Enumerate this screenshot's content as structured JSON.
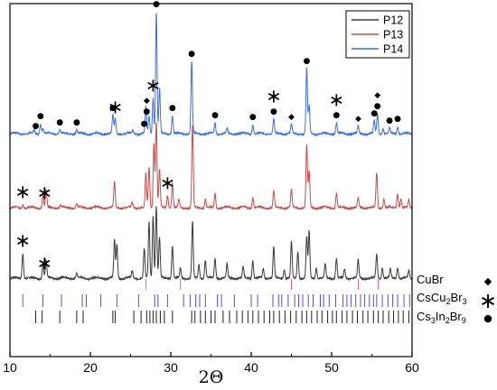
{
  "chart_data": {
    "type": "line",
    "title": "",
    "xlabel": "2Θ",
    "ylabel": "",
    "xlim": [
      10,
      60
    ],
    "xticks": [
      10,
      20,
      30,
      40,
      50,
      60
    ],
    "grid": false,
    "legend_placement": "top-right",
    "series": [
      {
        "name": "P12",
        "color": "#3a3a3a",
        "baseline": 0,
        "peaks": [
          [
            11.6,
            0.28
          ],
          [
            14.1,
            0.16
          ],
          [
            14.5,
            0.2
          ],
          [
            18.3,
            0.05
          ],
          [
            23.0,
            0.42
          ],
          [
            23.3,
            0.38
          ],
          [
            25.2,
            0.08
          ],
          [
            26.7,
            0.32
          ],
          [
            27.3,
            0.62
          ],
          [
            27.8,
            0.7
          ],
          [
            28.2,
            0.8
          ],
          [
            28.6,
            0.45
          ],
          [
            30.2,
            0.36
          ],
          [
            31.2,
            0.1
          ],
          [
            32.7,
            0.62
          ],
          [
            33.5,
            0.15
          ],
          [
            34.3,
            0.2
          ],
          [
            35.5,
            0.22
          ],
          [
            37.0,
            0.15
          ],
          [
            39.0,
            0.12
          ],
          [
            40.2,
            0.2
          ],
          [
            41.5,
            0.1
          ],
          [
            42.8,
            0.34
          ],
          [
            44.1,
            0.1
          ],
          [
            45.0,
            0.4
          ],
          [
            45.8,
            0.3
          ],
          [
            46.9,
            0.46
          ],
          [
            47.2,
            0.52
          ],
          [
            48.1,
            0.12
          ],
          [
            49.2,
            0.15
          ],
          [
            50.6,
            0.22
          ],
          [
            51.6,
            0.1
          ],
          [
            53.3,
            0.2
          ],
          [
            55.6,
            0.26
          ],
          [
            56.3,
            0.12
          ],
          [
            57.3,
            0.1
          ],
          [
            58.2,
            0.12
          ],
          [
            59.6,
            0.08
          ]
        ]
      },
      {
        "name": "P13",
        "color": "#c0504d",
        "baseline": 1,
        "peaks": [
          [
            11.6,
            0.04
          ],
          [
            14.1,
            0.14
          ],
          [
            14.5,
            0.2
          ],
          [
            16.3,
            0.03
          ],
          [
            18.3,
            0.04
          ],
          [
            23.0,
            0.28
          ],
          [
            25.2,
            0.06
          ],
          [
            26.9,
            0.38
          ],
          [
            27.3,
            0.44
          ],
          [
            27.9,
            0.72
          ],
          [
            28.2,
            0.96
          ],
          [
            28.6,
            0.42
          ],
          [
            29.6,
            0.14
          ],
          [
            30.2,
            0.28
          ],
          [
            31.0,
            0.08
          ],
          [
            32.7,
            0.92
          ],
          [
            34.3,
            0.1
          ],
          [
            35.5,
            0.16
          ],
          [
            40.2,
            0.12
          ],
          [
            42.8,
            0.18
          ],
          [
            45.0,
            0.2
          ],
          [
            46.9,
            0.7
          ],
          [
            47.2,
            0.4
          ],
          [
            50.6,
            0.16
          ],
          [
            53.3,
            0.1
          ],
          [
            55.6,
            0.38
          ],
          [
            56.5,
            0.1
          ],
          [
            58.2,
            0.16
          ],
          [
            58.6,
            0.1
          ],
          [
            59.6,
            0.08
          ]
        ]
      },
      {
        "name": "P14",
        "color": "#3f6fd8",
        "baseline": 2,
        "peaks": [
          [
            13.0,
            0.04
          ],
          [
            13.8,
            0.11
          ],
          [
            14.1,
            0.06
          ],
          [
            16.2,
            0.04
          ],
          [
            18.3,
            0.04
          ],
          [
            22.8,
            0.2
          ],
          [
            23.1,
            0.16
          ],
          [
            25.3,
            0.04
          ],
          [
            26.9,
            0.3
          ],
          [
            27.3,
            0.2
          ],
          [
            27.8,
            0.4
          ],
          [
            28.2,
            1.35
          ],
          [
            28.6,
            0.5
          ],
          [
            30.2,
            0.2
          ],
          [
            32.6,
            0.8
          ],
          [
            35.5,
            0.12
          ],
          [
            37.0,
            0.05
          ],
          [
            40.2,
            0.1
          ],
          [
            42.8,
            0.16
          ],
          [
            45.0,
            0.1
          ],
          [
            46.9,
            0.72
          ],
          [
            47.2,
            0.3
          ],
          [
            50.6,
            0.12
          ],
          [
            53.3,
            0.08
          ],
          [
            55.3,
            0.14
          ],
          [
            55.7,
            0.22
          ],
          [
            56.4,
            0.06
          ],
          [
            57.2,
            0.06
          ],
          [
            58.2,
            0.08
          ]
        ]
      }
    ],
    "reference_phases": [
      {
        "label_parts": [
          [
            "CuBr",
            ""
          ]
        ],
        "color": "#d060d0",
        "marker": "◆",
        "ticks": [
          26.9,
          31.2,
          45.0,
          53.3,
          55.8
        ]
      },
      {
        "label_parts": [
          [
            "CsCu",
            ""
          ],
          [
            "2",
            "sub"
          ],
          [
            "Br",
            ""
          ],
          [
            "3",
            "sub"
          ]
        ],
        "color": "#5a4fd8",
        "marker": "∗",
        "ticks": [
          11.6,
          14.1,
          16.4,
          19.0,
          19.5,
          21.3,
          23.3,
          26.0,
          28.0,
          28.4,
          29.6,
          31.6,
          32.4,
          33.1,
          33.6,
          34.3,
          35.8,
          36.3,
          37.9,
          40.0,
          40.8,
          42.7,
          43.4,
          43.8,
          44.6,
          45.4,
          45.9,
          46.4,
          47.1,
          47.7,
          48.6,
          49.0,
          49.7,
          50.5,
          51.4,
          51.9,
          52.4,
          53.0,
          53.6,
          54.1,
          54.7,
          55.2,
          55.6,
          56.3,
          57.0,
          57.6,
          58.2,
          59.0,
          59.7
        ]
      },
      {
        "label_parts": [
          [
            "Cs",
            ""
          ],
          [
            "3",
            "sub"
          ],
          [
            "In",
            ""
          ],
          [
            "2",
            "sub"
          ],
          [
            "Br",
            ""
          ],
          [
            "9",
            "sub"
          ]
        ],
        "color": "#222222",
        "marker": "●",
        "ticks": [
          13.2,
          14.0,
          16.2,
          18.3,
          19.1,
          22.8,
          23.1,
          25.4,
          26.3,
          27.0,
          27.4,
          27.8,
          28.2,
          28.7,
          29.2,
          30.2,
          32.6,
          33.0,
          33.7,
          34.3,
          35.0,
          35.5,
          36.5,
          37.3,
          38.2,
          38.9,
          39.6,
          40.2,
          40.9,
          41.6,
          42.3,
          42.8,
          43.5,
          44.2,
          44.9,
          45.6,
          46.3,
          46.9,
          47.5,
          48.2,
          48.8,
          49.5,
          50.1,
          50.6,
          51.3,
          51.9,
          52.6,
          53.2,
          53.9,
          54.5,
          55.2,
          55.8,
          56.4,
          57.1,
          57.7,
          58.3,
          58.9,
          59.6
        ]
      }
    ],
    "annotations": [
      {
        "series": 2,
        "x": 13.2,
        "marker": "●"
      },
      {
        "series": 2,
        "x": 13.8,
        "marker": "●"
      },
      {
        "series": 2,
        "x": 16.2,
        "marker": "●"
      },
      {
        "series": 2,
        "x": 18.3,
        "marker": "●"
      },
      {
        "series": 2,
        "x": 22.8,
        "marker": "●"
      },
      {
        "series": 2,
        "x": 23.1,
        "marker": "∗"
      },
      {
        "series": 2,
        "x": 26.7,
        "marker": "●"
      },
      {
        "series": 2,
        "x": 27.0,
        "marker": "●"
      },
      {
        "series": 2,
        "x": 27.0,
        "marker": "◆"
      },
      {
        "series": 2,
        "x": 27.8,
        "marker": "∗"
      },
      {
        "series": 2,
        "x": 28.2,
        "marker": "●"
      },
      {
        "series": 2,
        "x": 28.2,
        "marker": "∗"
      },
      {
        "series": 2,
        "x": 30.2,
        "marker": "●"
      },
      {
        "series": 2,
        "x": 32.6,
        "marker": "●"
      },
      {
        "series": 2,
        "x": 35.5,
        "marker": "●"
      },
      {
        "series": 2,
        "x": 40.2,
        "marker": "●"
      },
      {
        "series": 2,
        "x": 42.8,
        "marker": "●"
      },
      {
        "series": 2,
        "x": 42.8,
        "marker": "∗"
      },
      {
        "series": 2,
        "x": 45.0,
        "marker": "◆"
      },
      {
        "series": 2,
        "x": 46.9,
        "marker": "●"
      },
      {
        "series": 2,
        "x": 50.6,
        "marker": "●"
      },
      {
        "series": 2,
        "x": 50.6,
        "marker": "∗"
      },
      {
        "series": 2,
        "x": 53.3,
        "marker": "◆"
      },
      {
        "series": 2,
        "x": 55.3,
        "marker": "●"
      },
      {
        "series": 2,
        "x": 55.7,
        "marker": "●"
      },
      {
        "series": 2,
        "x": 55.7,
        "marker": "◆"
      },
      {
        "series": 2,
        "x": 57.2,
        "marker": "●"
      },
      {
        "series": 2,
        "x": 58.2,
        "marker": "●"
      },
      {
        "series": 1,
        "x": 11.6,
        "marker": "∗"
      },
      {
        "series": 1,
        "x": 14.3,
        "marker": "∗"
      },
      {
        "series": 1,
        "x": 29.6,
        "marker": "∗"
      },
      {
        "series": 0,
        "x": 11.6,
        "marker": "∗"
      },
      {
        "series": 0,
        "x": 14.3,
        "marker": "∗"
      }
    ]
  }
}
